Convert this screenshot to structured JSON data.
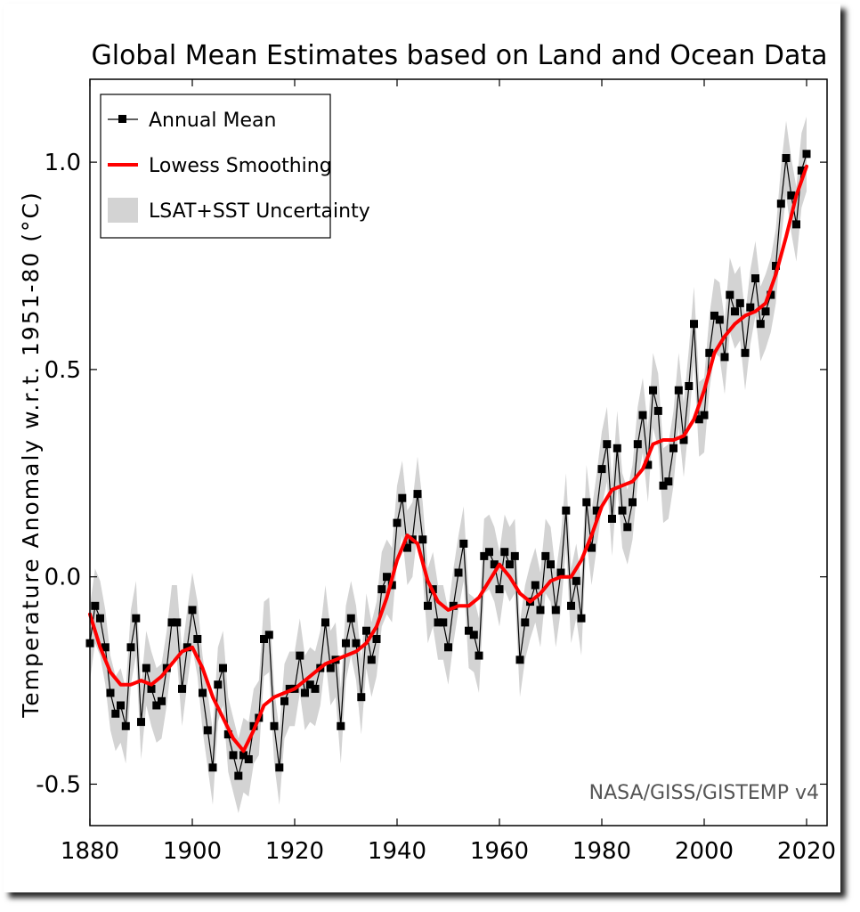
{
  "chart_data": {
    "type": "line",
    "title": "Global Mean Estimates based on Land and Ocean Data",
    "xlabel": "",
    "ylabel": "Temperature Anomaly w.r.t. 1951-80 (°C)",
    "xlim": [
      1880,
      2024
    ],
    "ylim": [
      -0.6,
      1.2
    ],
    "x_ticks": [
      "1880",
      "1900",
      "1920",
      "1940",
      "1960",
      "1980",
      "2000",
      "2020"
    ],
    "y_ticks": [
      "-0.5",
      "0.0",
      "0.5",
      "1.0"
    ],
    "legend_position": "top-left",
    "grid": false,
    "annotation": "NASA/GISS/GISTEMP v4",
    "legend": {
      "annual": "Annual Mean",
      "smooth": "Lowess Smoothing",
      "band": "LSAT+SST Uncertainty"
    },
    "colors": {
      "annual": "#000000",
      "smooth": "#ff0000",
      "band": "#d3d3d3"
    },
    "uncertainty_halfwidth": 0.09,
    "series": [
      {
        "name": "Annual Mean",
        "x": [
          1880,
          1881,
          1882,
          1883,
          1884,
          1885,
          1886,
          1887,
          1888,
          1889,
          1890,
          1891,
          1892,
          1893,
          1894,
          1895,
          1896,
          1897,
          1898,
          1899,
          1900,
          1901,
          1902,
          1903,
          1904,
          1905,
          1906,
          1907,
          1908,
          1909,
          1910,
          1911,
          1912,
          1913,
          1914,
          1915,
          1916,
          1917,
          1918,
          1919,
          1920,
          1921,
          1922,
          1923,
          1924,
          1925,
          1926,
          1927,
          1928,
          1929,
          1930,
          1931,
          1932,
          1933,
          1934,
          1935,
          1936,
          1937,
          1938,
          1939,
          1940,
          1941,
          1942,
          1943,
          1944,
          1945,
          1946,
          1947,
          1948,
          1949,
          1950,
          1951,
          1952,
          1953,
          1954,
          1955,
          1956,
          1957,
          1958,
          1959,
          1960,
          1961,
          1962,
          1963,
          1964,
          1965,
          1966,
          1967,
          1968,
          1969,
          1970,
          1971,
          1972,
          1973,
          1974,
          1975,
          1976,
          1977,
          1978,
          1979,
          1980,
          1981,
          1982,
          1983,
          1984,
          1985,
          1986,
          1987,
          1988,
          1989,
          1990,
          1991,
          1992,
          1993,
          1994,
          1995,
          1996,
          1997,
          1998,
          1999,
          2000,
          2001,
          2002,
          2003,
          2004,
          2005,
          2006,
          2007,
          2008,
          2009,
          2010,
          2011,
          2012,
          2013,
          2014,
          2015,
          2016,
          2017,
          2018,
          2019,
          2020
        ],
        "values": [
          -0.16,
          -0.07,
          -0.1,
          -0.17,
          -0.28,
          -0.33,
          -0.31,
          -0.36,
          -0.17,
          -0.1,
          -0.35,
          -0.22,
          -0.27,
          -0.31,
          -0.3,
          -0.22,
          -0.11,
          -0.11,
          -0.27,
          -0.17,
          -0.08,
          -0.15,
          -0.28,
          -0.37,
          -0.46,
          -0.26,
          -0.22,
          -0.38,
          -0.43,
          -0.48,
          -0.43,
          -0.44,
          -0.36,
          -0.34,
          -0.15,
          -0.14,
          -0.36,
          -0.46,
          -0.3,
          -0.27,
          -0.27,
          -0.19,
          -0.28,
          -0.26,
          -0.27,
          -0.22,
          -0.11,
          -0.22,
          -0.2,
          -0.36,
          -0.16,
          -0.1,
          -0.16,
          -0.29,
          -0.13,
          -0.2,
          -0.15,
          -0.03,
          0.0,
          -0.02,
          0.13,
          0.19,
          0.07,
          0.09,
          0.2,
          0.09,
          -0.07,
          -0.03,
          -0.11,
          -0.11,
          -0.17,
          -0.07,
          0.01,
          0.08,
          -0.13,
          -0.14,
          -0.19,
          0.05,
          0.06,
          0.03,
          -0.03,
          0.06,
          0.03,
          0.05,
          -0.2,
          -0.11,
          -0.06,
          -0.02,
          -0.08,
          0.05,
          0.03,
          -0.08,
          0.01,
          0.16,
          -0.07,
          -0.01,
          -0.1,
          0.18,
          0.07,
          0.16,
          0.26,
          0.32,
          0.14,
          0.31,
          0.16,
          0.12,
          0.18,
          0.32,
          0.39,
          0.27,
          0.45,
          0.4,
          0.22,
          0.23,
          0.31,
          0.45,
          0.33,
          0.46,
          0.61,
          0.38,
          0.39,
          0.54,
          0.63,
          0.62,
          0.53,
          0.68,
          0.64,
          0.66,
          0.54,
          0.65,
          0.72,
          0.61,
          0.64,
          0.68,
          0.75,
          0.9,
          1.01,
          0.92,
          0.85,
          0.98,
          1.02
        ]
      },
      {
        "name": "Lowess Smoothing",
        "x": [
          1880,
          1882,
          1884,
          1886,
          1888,
          1890,
          1892,
          1894,
          1896,
          1898,
          1900,
          1902,
          1904,
          1906,
          1908,
          1910,
          1912,
          1914,
          1916,
          1918,
          1920,
          1922,
          1924,
          1926,
          1928,
          1930,
          1932,
          1934,
          1936,
          1938,
          1940,
          1942,
          1944,
          1946,
          1948,
          1950,
          1952,
          1954,
          1956,
          1958,
          1960,
          1962,
          1964,
          1966,
          1968,
          1970,
          1972,
          1974,
          1976,
          1978,
          1980,
          1982,
          1984,
          1986,
          1988,
          1990,
          1992,
          1994,
          1996,
          1998,
          2000,
          2002,
          2004,
          2006,
          2008,
          2010,
          2012,
          2014,
          2016,
          2018,
          2020
        ],
        "values": [
          -0.09,
          -0.17,
          -0.23,
          -0.26,
          -0.26,
          -0.25,
          -0.26,
          -0.24,
          -0.21,
          -0.18,
          -0.17,
          -0.22,
          -0.29,
          -0.34,
          -0.39,
          -0.42,
          -0.37,
          -0.31,
          -0.29,
          -0.28,
          -0.27,
          -0.25,
          -0.23,
          -0.21,
          -0.2,
          -0.19,
          -0.18,
          -0.16,
          -0.12,
          -0.05,
          0.04,
          0.1,
          0.08,
          -0.01,
          -0.06,
          -0.08,
          -0.07,
          -0.07,
          -0.05,
          -0.01,
          0.03,
          0.0,
          -0.04,
          -0.06,
          -0.04,
          -0.01,
          0.0,
          0.0,
          0.04,
          0.1,
          0.17,
          0.21,
          0.22,
          0.23,
          0.26,
          0.32,
          0.33,
          0.33,
          0.34,
          0.38,
          0.45,
          0.54,
          0.58,
          0.61,
          0.63,
          0.64,
          0.66,
          0.73,
          0.82,
          0.92,
          0.99
        ]
      }
    ]
  }
}
